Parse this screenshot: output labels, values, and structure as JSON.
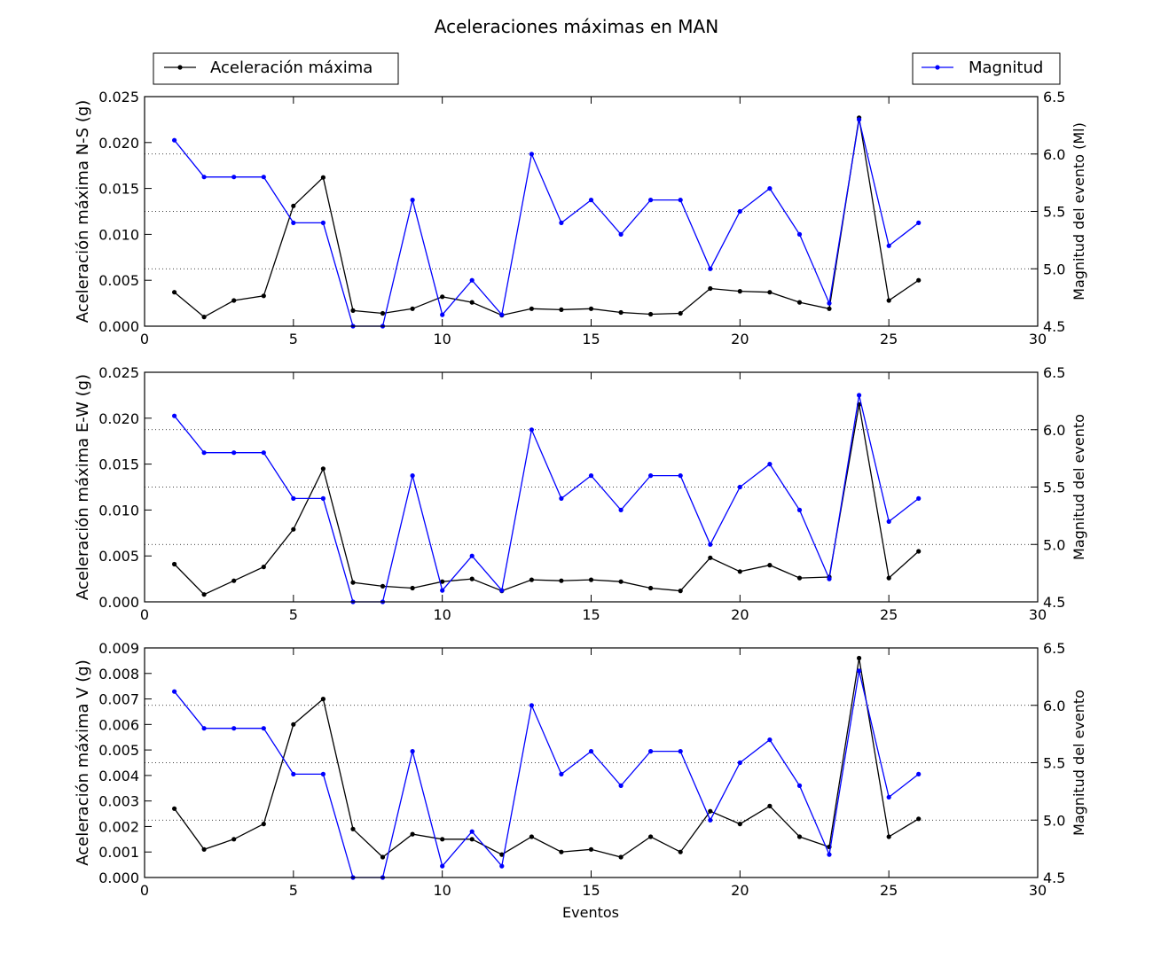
{
  "figure": {
    "title": "Aceleraciones máximas en MAN",
    "xlabel": "Eventos",
    "legend_left": "Aceleración máxima",
    "legend_right": "Magnitud"
  },
  "colors": {
    "accel": "#000000",
    "mag": "#0000ff",
    "grid": "#000000"
  },
  "chart_data": [
    {
      "type": "line",
      "x": [
        1,
        2,
        3,
        4,
        5,
        6,
        7,
        8,
        9,
        10,
        11,
        12,
        13,
        14,
        15,
        16,
        17,
        18,
        19,
        20,
        21,
        22,
        23,
        24,
        25,
        26
      ],
      "xlim": [
        0,
        30
      ],
      "xticks": [
        "0",
        "5",
        "10",
        "15",
        "20",
        "25",
        "30"
      ],
      "ylabel": "Aceleración máxima N-S (g)",
      "ylim": [
        0,
        0.025
      ],
      "yticks": [
        "0.000",
        "0.005",
        "0.010",
        "0.015",
        "0.020",
        "0.025"
      ],
      "y2label": "Magnitud del evento (Ml)",
      "y2lim": [
        4.5,
        6.5
      ],
      "y2ticks": [
        "4.5",
        "5.0",
        "5.5",
        "6.0",
        "6.5"
      ],
      "grid": "dotted horizontal at right-axis ticks",
      "series": [
        {
          "name": "Aceleración máxima",
          "axis": "left",
          "values": [
            0.0037,
            0.001,
            0.0028,
            0.0033,
            0.0131,
            0.0162,
            0.0017,
            0.0014,
            0.0019,
            0.0032,
            0.0026,
            0.0012,
            0.0019,
            0.0018,
            0.0019,
            0.0015,
            0.0013,
            0.0014,
            0.0041,
            0.0038,
            0.0037,
            0.0026,
            0.0019,
            0.0227,
            0.0028,
            0.005
          ]
        },
        {
          "name": "Magnitud",
          "axis": "right",
          "values": [
            6.12,
            5.8,
            5.8,
            5.8,
            5.4,
            5.4,
            4.5,
            4.5,
            5.6,
            4.6,
            4.9,
            4.6,
            6.0,
            5.4,
            5.6,
            5.3,
            5.6,
            5.6,
            5.0,
            5.5,
            5.7,
            5.3,
            4.7,
            6.3,
            5.2,
            5.4
          ]
        }
      ]
    },
    {
      "type": "line",
      "x": [
        1,
        2,
        3,
        4,
        5,
        6,
        7,
        8,
        9,
        10,
        11,
        12,
        13,
        14,
        15,
        16,
        17,
        18,
        19,
        20,
        21,
        22,
        23,
        24,
        25,
        26
      ],
      "xlim": [
        0,
        30
      ],
      "xticks": [
        "0",
        "5",
        "10",
        "15",
        "20",
        "25",
        "30"
      ],
      "ylabel": "Aceleración máxima E-W (g)",
      "ylim": [
        0,
        0.025
      ],
      "yticks": [
        "0.000",
        "0.005",
        "0.010",
        "0.015",
        "0.020",
        "0.025"
      ],
      "y2label": "Magnitud del evento",
      "y2lim": [
        4.5,
        6.5
      ],
      "y2ticks": [
        "4.5",
        "5.0",
        "5.5",
        "6.0",
        "6.5"
      ],
      "grid": "dotted horizontal at right-axis ticks",
      "series": [
        {
          "name": "Aceleración máxima",
          "axis": "left",
          "values": [
            0.0041,
            0.0008,
            0.0023,
            0.0038,
            0.0079,
            0.0145,
            0.0021,
            0.0017,
            0.0015,
            0.0022,
            0.0025,
            0.0012,
            0.0024,
            0.0023,
            0.0024,
            0.0022,
            0.0015,
            0.0012,
            0.0048,
            0.0033,
            0.004,
            0.0026,
            0.0027,
            0.0215,
            0.0026,
            0.0055
          ]
        },
        {
          "name": "Magnitud",
          "axis": "right",
          "values": [
            6.12,
            5.8,
            5.8,
            5.8,
            5.4,
            5.4,
            4.5,
            4.5,
            5.6,
            4.6,
            4.9,
            4.6,
            6.0,
            5.4,
            5.6,
            5.3,
            5.6,
            5.6,
            5.0,
            5.5,
            5.7,
            5.3,
            4.7,
            6.3,
            5.2,
            5.4
          ]
        }
      ]
    },
    {
      "type": "line",
      "x": [
        1,
        2,
        3,
        4,
        5,
        6,
        7,
        8,
        9,
        10,
        11,
        12,
        13,
        14,
        15,
        16,
        17,
        18,
        19,
        20,
        21,
        22,
        23,
        24,
        25,
        26
      ],
      "xlim": [
        0,
        30
      ],
      "xticks": [
        "0",
        "5",
        "10",
        "15",
        "20",
        "25",
        "30"
      ],
      "xlabel": "Eventos",
      "ylabel": "Aceleración máxima V (g)",
      "ylim": [
        0,
        0.009
      ],
      "yticks": [
        "0.000",
        "0.001",
        "0.002",
        "0.003",
        "0.004",
        "0.005",
        "0.006",
        "0.007",
        "0.008",
        "0.009"
      ],
      "y2label": "Magnitud del evento",
      "y2lim": [
        4.5,
        6.5
      ],
      "y2ticks": [
        "4.5",
        "5.0",
        "5.5",
        "6.0",
        "6.5"
      ],
      "grid": "dotted horizontal at right-axis ticks",
      "series": [
        {
          "name": "Aceleración máxima",
          "axis": "left",
          "values": [
            0.0027,
            0.0011,
            0.0015,
            0.0021,
            0.006,
            0.007,
            0.0019,
            0.0008,
            0.0017,
            0.0015,
            0.0015,
            0.0009,
            0.0016,
            0.001,
            0.0011,
            0.0008,
            0.0016,
            0.001,
            0.0026,
            0.0021,
            0.0028,
            0.0016,
            0.0012,
            0.0086,
            0.0016,
            0.0023
          ]
        },
        {
          "name": "Magnitud",
          "axis": "right",
          "values": [
            6.12,
            5.8,
            5.8,
            5.8,
            5.4,
            5.4,
            4.5,
            4.5,
            5.6,
            4.6,
            4.9,
            4.6,
            6.0,
            5.4,
            5.6,
            5.3,
            5.6,
            5.6,
            5.0,
            5.5,
            5.7,
            5.3,
            4.7,
            6.3,
            5.2,
            5.4
          ]
        }
      ]
    }
  ]
}
